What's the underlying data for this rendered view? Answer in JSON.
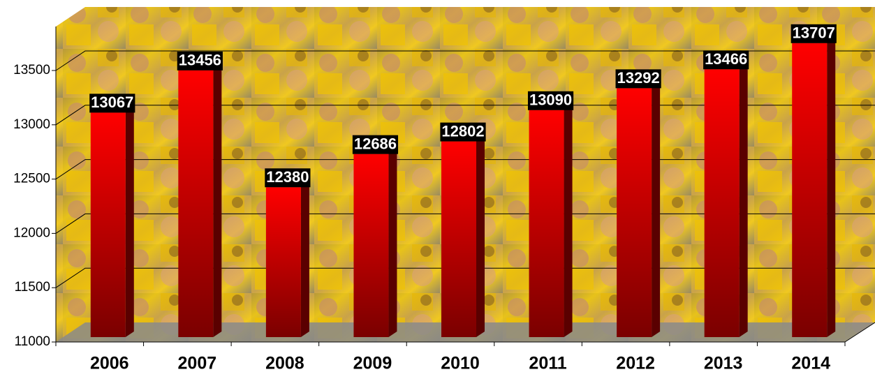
{
  "chart_data": {
    "type": "bar",
    "categories": [
      "2006",
      "2007",
      "2008",
      "2009",
      "2010",
      "2011",
      "2012",
      "2013",
      "2014"
    ],
    "values": [
      13067,
      13456,
      12380,
      12686,
      12802,
      13090,
      13292,
      13466,
      13707
    ],
    "color": "#ff0000",
    "ylim": [
      11000,
      14000
    ],
    "yticks": [
      11000,
      11500,
      12000,
      12500,
      13000,
      13500
    ],
    "grid": true
  }
}
